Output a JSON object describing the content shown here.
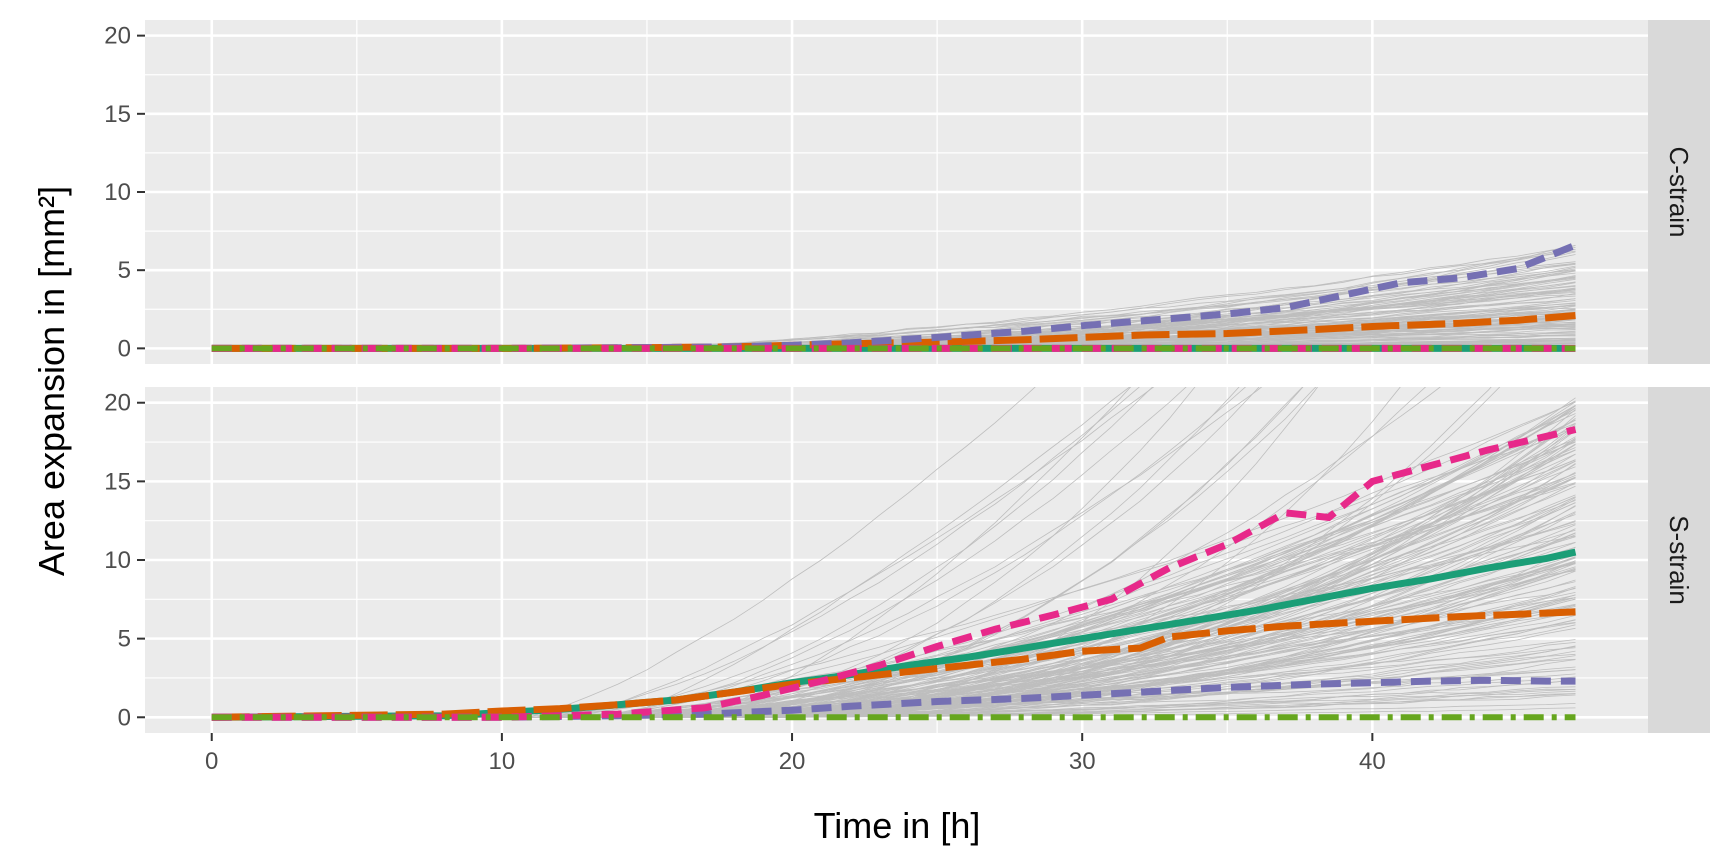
{
  "chart_data": {
    "type": "line",
    "xlabel": "Time in [h]",
    "ylabel": "Area expansion in [mm²]",
    "xlim": [
      -2.3,
      49.5
    ],
    "ylim": [
      -1.0,
      21.0
    ],
    "x_ticks": [
      0,
      10,
      20,
      30,
      40
    ],
    "y_ticks": [
      0,
      5,
      10,
      15,
      20
    ],
    "grid": true,
    "colors": {
      "panel_bg": "#ebebeb",
      "grid_major": "#ffffff",
      "strip_bg": "#d9d9d9",
      "individual_lines": "#bebebe",
      "green": "#1b9e77",
      "orange": "#d95f02",
      "purple": "#7570b3",
      "pink": "#e7298a",
      "lime": "#66a61e"
    },
    "panels": [
      {
        "strip": "C-strain",
        "series": [
          {
            "name": "green solid",
            "color": "#1b9e77",
            "dash": "solid",
            "x": [
              0,
              47
            ],
            "y": [
              0,
              0
            ]
          },
          {
            "name": "orange long-dash",
            "color": "#d95f02",
            "dash": "longdash",
            "x": [
              0,
              10,
              15,
              18,
              20,
              22,
              25,
              28,
              30,
              32,
              35,
              38,
              40,
              43,
              45,
              47
            ],
            "y": [
              0,
              0,
              0.05,
              0.1,
              0.2,
              0.3,
              0.4,
              0.55,
              0.7,
              0.85,
              0.95,
              1.2,
              1.4,
              1.6,
              1.8,
              2.1
            ]
          },
          {
            "name": "purple dashed",
            "color": "#7570b3",
            "dash": "dashed",
            "x": [
              0,
              10,
              15,
              18,
              20,
              22,
              25,
              28,
              30,
              33,
              35,
              37,
              39,
              41,
              43,
              45,
              47
            ],
            "y": [
              0,
              0,
              0.05,
              0.1,
              0.2,
              0.35,
              0.7,
              1.1,
              1.45,
              1.9,
              2.2,
              2.6,
              3.4,
              4.2,
              4.5,
              5.1,
              6.6
            ]
          },
          {
            "name": "pink dashed",
            "color": "#e7298a",
            "dash": "dashed",
            "x": [
              0,
              47
            ],
            "y": [
              0,
              0
            ]
          },
          {
            "name": "lime dash-dot",
            "color": "#66a61e",
            "dash": "dashdot",
            "x": [
              0,
              47
            ],
            "y": [
              0,
              0
            ]
          }
        ]
      },
      {
        "strip": "S-strain",
        "series": [
          {
            "name": "green solid",
            "color": "#1b9e77",
            "dash": "solid",
            "x": [
              0,
              8,
              10,
              12,
              14,
              16,
              18,
              20,
              22,
              24,
              26,
              28,
              30,
              32,
              34,
              36,
              38,
              40,
              42,
              44,
              46,
              47
            ],
            "y": [
              0,
              0.1,
              0.3,
              0.5,
              0.8,
              1.1,
              1.6,
              2.2,
              2.7,
              3.3,
              3.8,
              4.4,
              5.0,
              5.6,
              6.2,
              6.8,
              7.5,
              8.2,
              8.8,
              9.5,
              10.1,
              10.5
            ]
          },
          {
            "name": "orange long-dash",
            "color": "#d95f02",
            "dash": "longdash",
            "x": [
              0,
              8,
              10,
              12,
              14,
              16,
              18,
              20,
              22,
              24,
              26,
              28,
              30,
              32,
              33,
              35,
              37,
              40,
              43,
              47
            ],
            "y": [
              0,
              0.2,
              0.4,
              0.55,
              0.8,
              1.1,
              1.6,
              2.1,
              2.5,
              2.9,
              3.3,
              3.7,
              4.2,
              4.4,
              5.1,
              5.5,
              5.8,
              6.1,
              6.4,
              6.7
            ]
          },
          {
            "name": "purple dashed",
            "color": "#7570b3",
            "dash": "dashed",
            "x": [
              0,
              10,
              14,
              17,
              20,
              22,
              25,
              28,
              30,
              33,
              35,
              38,
              40,
              42,
              44,
              46,
              47
            ],
            "y": [
              0,
              0,
              0.1,
              0.2,
              0.45,
              0.7,
              1.0,
              1.2,
              1.4,
              1.7,
              1.9,
              2.1,
              2.2,
              2.3,
              2.35,
              2.3,
              2.3
            ]
          },
          {
            "name": "pink dashed",
            "color": "#e7298a",
            "dash": "dashed",
            "x": [
              0,
              10,
              14,
              17,
              19,
              21,
              23,
              25,
              27,
              29,
              31,
              33,
              35,
              37,
              38.5,
              40,
              42,
              44,
              47
            ],
            "y": [
              0,
              0,
              0.2,
              0.6,
              1.4,
              2.3,
              3.3,
              4.5,
              5.6,
              6.5,
              7.5,
              9.5,
              11.0,
              13.0,
              12.7,
              15.0,
              16.0,
              17.0,
              18.3
            ]
          },
          {
            "name": "lime dash-dot",
            "color": "#66a61e",
            "dash": "dashdot",
            "x": [
              0,
              47
            ],
            "y": [
              0,
              0
            ]
          }
        ]
      }
    ]
  }
}
